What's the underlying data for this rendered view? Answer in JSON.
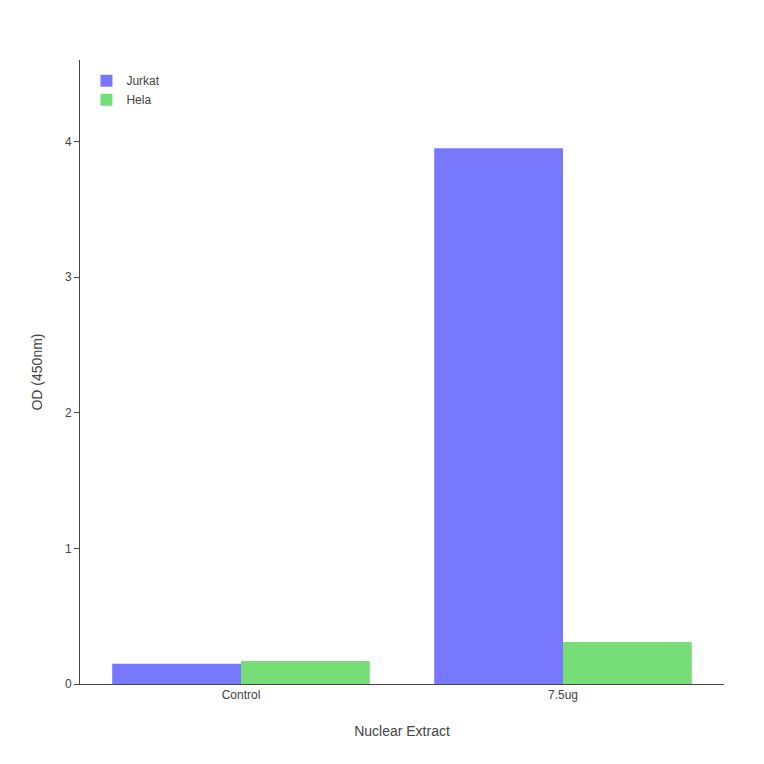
{
  "chart_data": {
    "type": "bar",
    "categories": [
      "Control",
      "7.5ug"
    ],
    "series": [
      {
        "name": "Jurkat",
        "color": "#7878ff",
        "values": [
          0.15,
          3.95
        ]
      },
      {
        "name": "Hela",
        "color": "#77dd77",
        "values": [
          0.17,
          0.31
        ]
      }
    ],
    "xlabel": "Nuclear Extract",
    "ylabel": "OD (450nm)",
    "ylim": [
      0,
      4.6
    ],
    "yticks": [
      0,
      1,
      2,
      3,
      4
    ],
    "grid": false,
    "legend": "upper left"
  }
}
